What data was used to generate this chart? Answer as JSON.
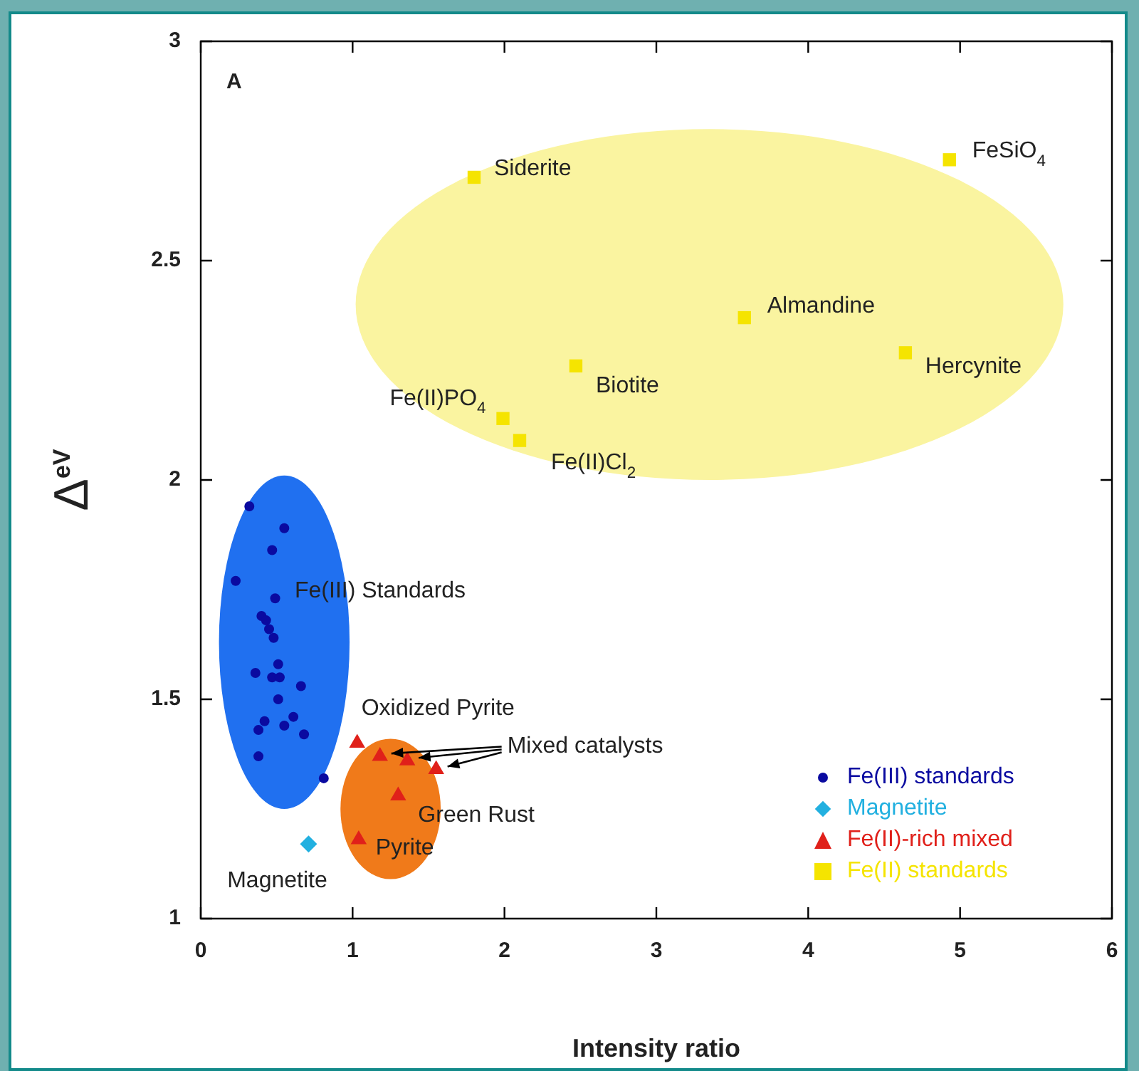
{
  "chart_data": {
    "type": "scatter",
    "xlabel": "Intensity ratio",
    "ylabel": "Δ$^{eV}$",
    "xlim": [
      0,
      6
    ],
    "xticks": [
      0,
      1,
      2,
      3,
      4,
      5,
      6
    ],
    "ylim": [
      1,
      3
    ],
    "yticks": [
      1,
      1.5,
      2,
      2.5,
      3
    ],
    "legend": "bottom right",
    "series": [
      {
        "name": "Fe(III) standards",
        "color": "#0a0aa0",
        "marker": "circle",
        "x": [
          0.32,
          0.55,
          0.47,
          0.23,
          0.49,
          0.4,
          0.43,
          0.45,
          0.48,
          0.51,
          0.36,
          0.47,
          0.52,
          0.66,
          0.51,
          0.42,
          0.61,
          0.38,
          0.55,
          0.68,
          0.38,
          0.81
        ],
        "values": [
          1.94,
          1.89,
          1.84,
          1.77,
          1.73,
          1.69,
          1.68,
          1.66,
          1.64,
          1.58,
          1.56,
          1.55,
          1.55,
          1.53,
          1.5,
          1.45,
          1.46,
          1.43,
          1.44,
          1.42,
          1.37,
          1.32
        ]
      },
      {
        "name": "Magnetite",
        "color": "#22b0e0",
        "marker": "diamond",
        "x": [
          0.71
        ],
        "values": [
          1.17
        ]
      },
      {
        "name": "Fe(II)-rich mixed",
        "color": "#e0201a",
        "marker": "triangle",
        "x": [
          1.03,
          1.18,
          1.36,
          1.55,
          1.3,
          1.04
        ],
        "values": [
          1.4,
          1.37,
          1.36,
          1.34,
          1.28,
          1.18
        ]
      },
      {
        "name": "Fe(II) standards",
        "color": "#f5e400",
        "marker": "square",
        "x": [
          1.8,
          4.93,
          3.58,
          4.64,
          2.47,
          1.99,
          2.1
        ],
        "values": [
          2.69,
          2.73,
          2.37,
          2.29,
          2.26,
          2.14,
          2.09
        ]
      }
    ],
    "annotations": [
      "A",
      {
        "text": "Siderite",
        "x": 1.8,
        "y": 2.69
      },
      {
        "text": "FeSiO$_{4}$",
        "x": 4.93,
        "y": 2.73
      },
      {
        "text": "Almandine",
        "x": 3.58,
        "y": 2.37
      },
      {
        "text": "Hercynite",
        "x": 4.64,
        "y": 2.29
      },
      {
        "text": "Biotite",
        "x": 2.47,
        "y": 2.26
      },
      {
        "text": "Fe(II)PO$_{4}$",
        "x": 1.99,
        "y": 2.14
      },
      {
        "text": "Fe(II)Cl$_{2}$",
        "x": 2.1,
        "y": 2.09
      },
      "Fe(III) Standards",
      {
        "text": "Oxidized Pyrite",
        "x": 1.03,
        "y": 1.4
      },
      {
        "text": "Mixed catalysts",
        "x": 1.55,
        "y": 1.34
      },
      {
        "text": "Green Rust",
        "x": 1.3,
        "y": 1.28
      },
      {
        "text": "Pyrite",
        "x": 1.04,
        "y": 1.18
      },
      {
        "text": "Magnetite",
        "x": 0.71,
        "y": 1.17
      }
    ]
  }
}
